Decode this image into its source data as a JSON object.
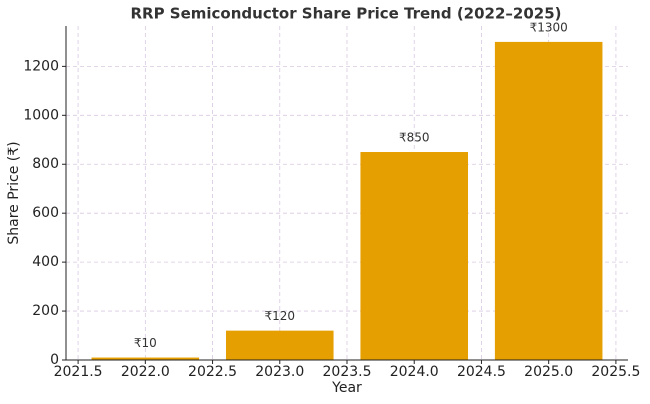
{
  "chart_data": {
    "type": "bar",
    "title": "RRP Semiconductor Share Price Trend (2022–2025)",
    "x_label": "Year",
    "y_label": "Share Price (₹)",
    "x": [
      2022,
      2023,
      2024,
      2025
    ],
    "values": [
      10,
      120,
      850,
      1300
    ],
    "value_labels": [
      "₹10",
      "₹120",
      "₹850",
      "₹1300"
    ],
    "color": "#e69f00",
    "xlim": [
      2021.41,
      2025.59
    ],
    "xticks": [
      {
        "value": 2021.5,
        "label": "2021.5"
      },
      {
        "value": 2022,
        "label": "2022.0"
      },
      {
        "value": 2022.5,
        "label": "2022.5"
      },
      {
        "value": 2023,
        "label": "2023.0"
      },
      {
        "value": 2023.5,
        "label": "2023.5"
      },
      {
        "value": 2024,
        "label": "2024.0"
      },
      {
        "value": 2024.5,
        "label": "2024.5"
      },
      {
        "value": 2025,
        "label": "2025.0"
      },
      {
        "value": 2025.5,
        "label": "2025.5"
      }
    ],
    "ylim": [
      0,
      1365
    ],
    "yticks": [
      0,
      200,
      400,
      600,
      800,
      1000,
      1200
    ],
    "grid": true
  }
}
